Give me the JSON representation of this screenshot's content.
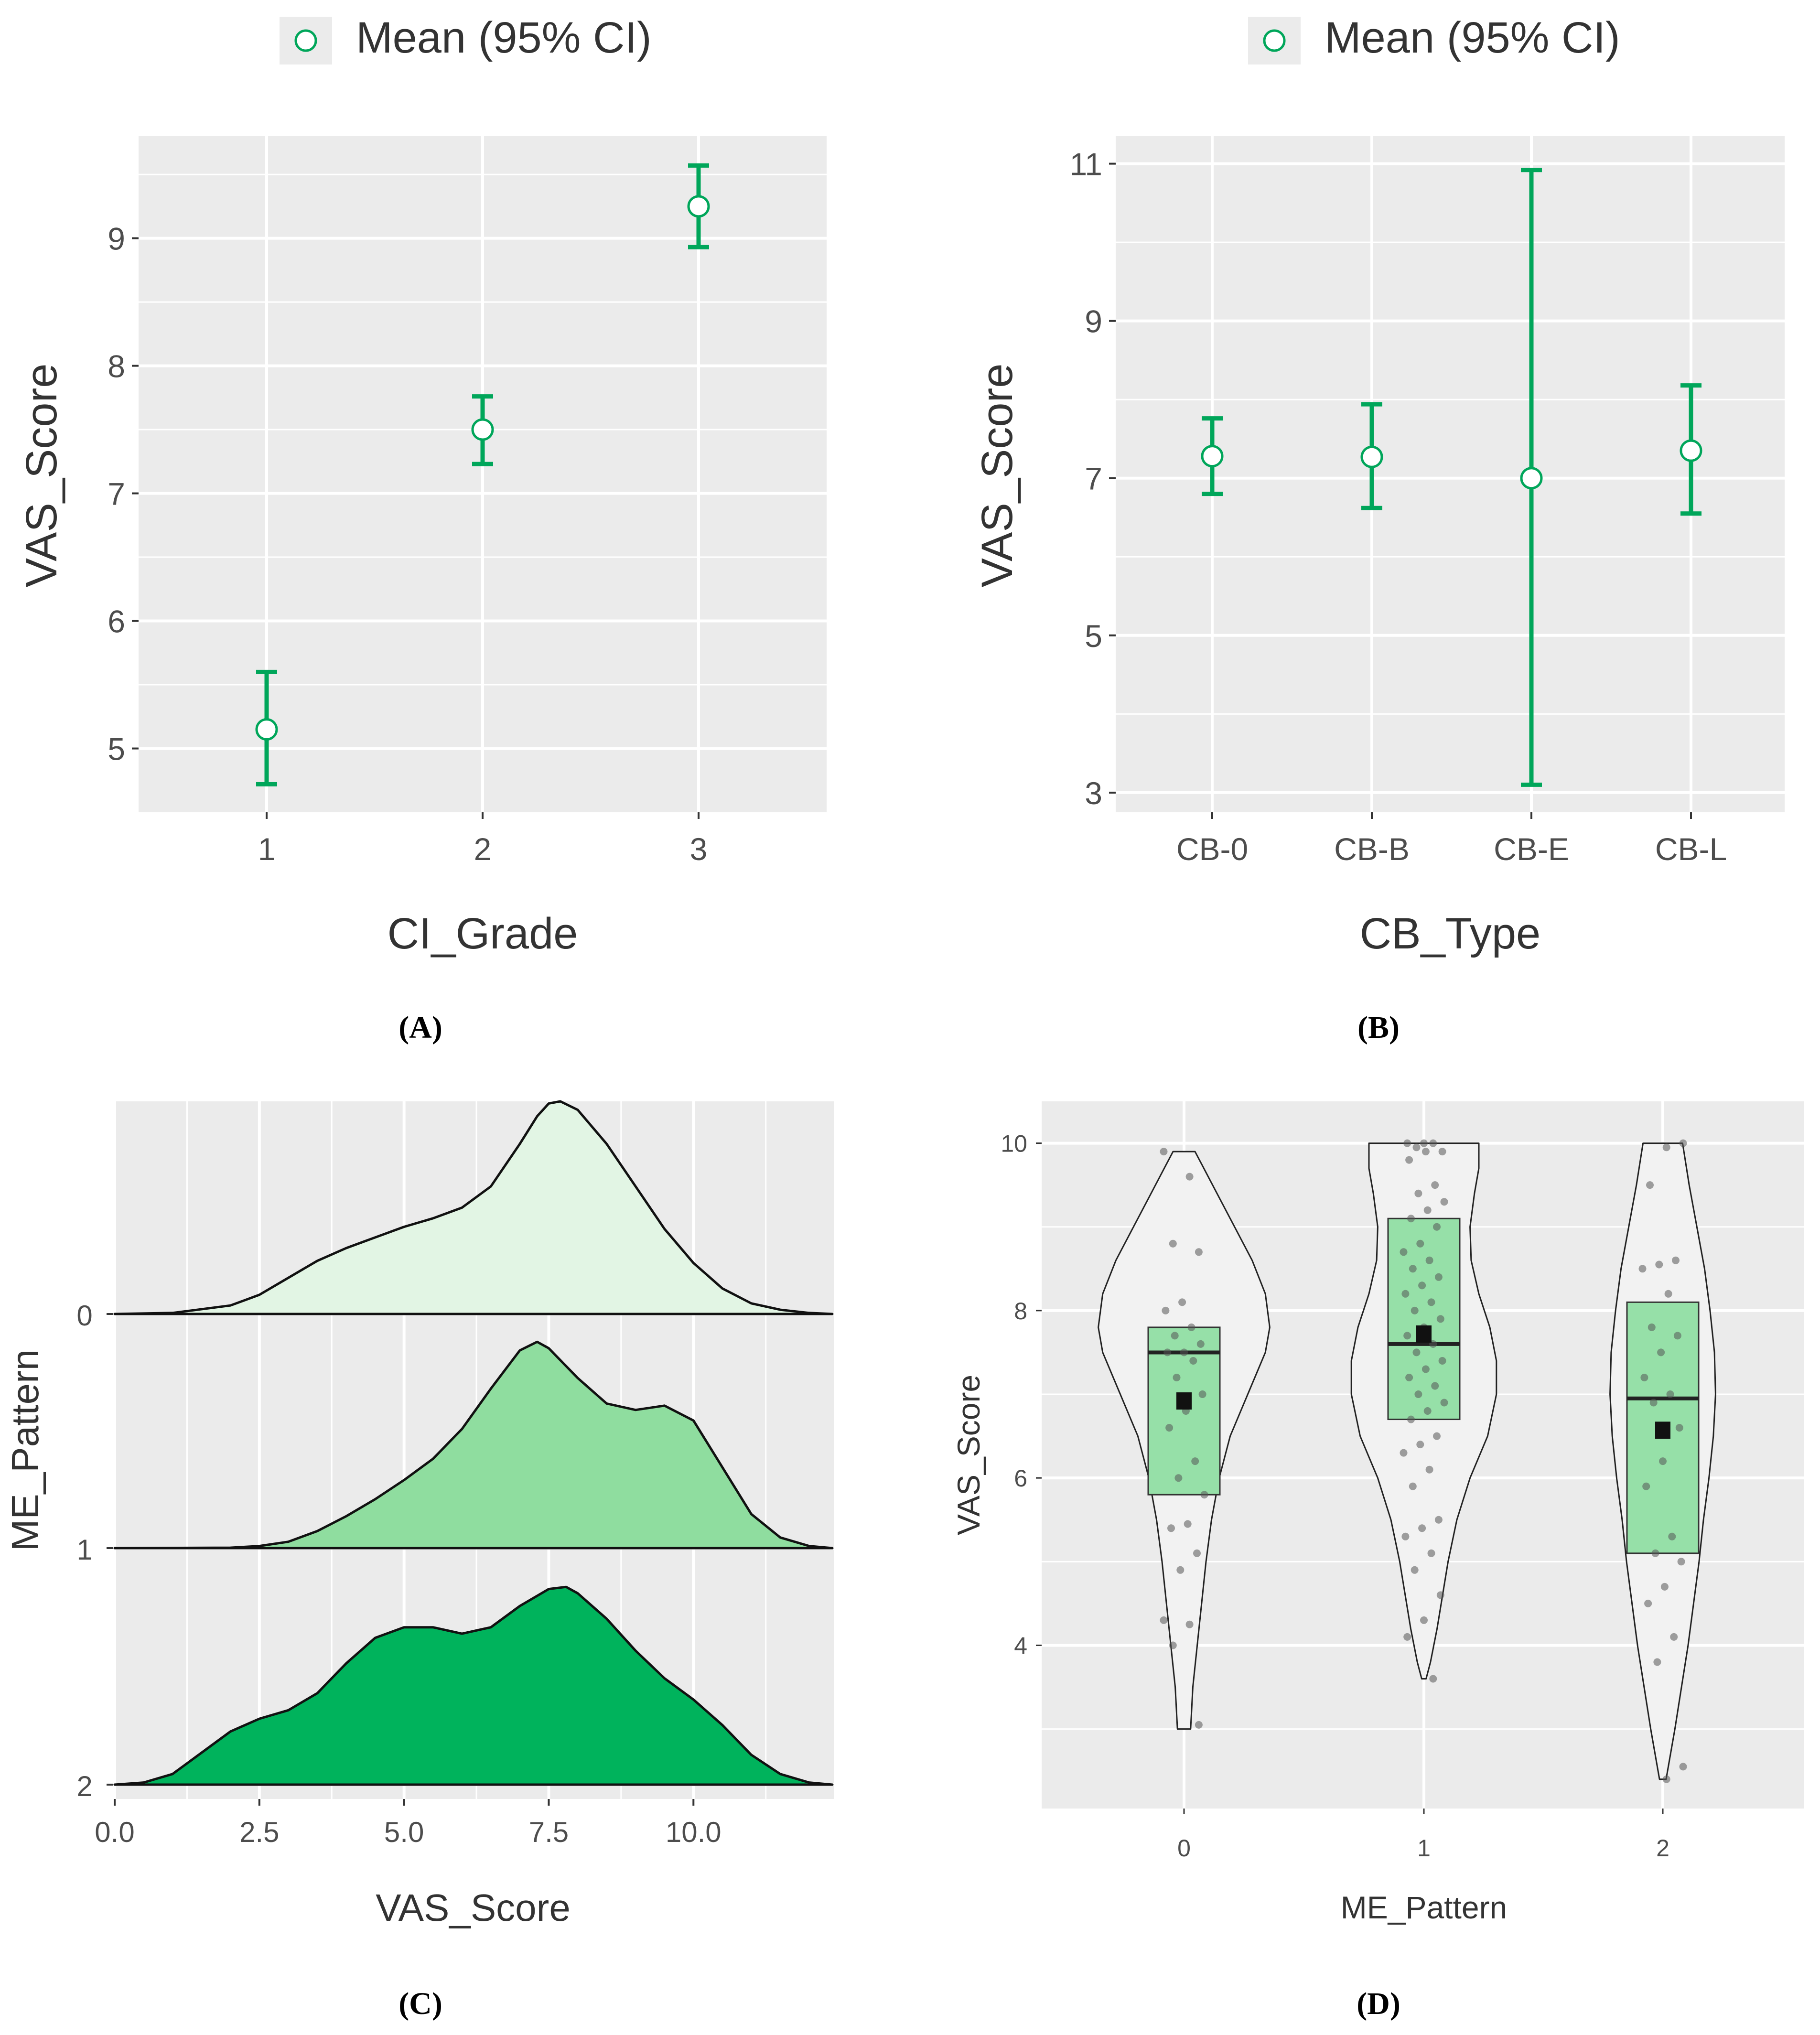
{
  "figure": {
    "panel_labels": [
      "(A)",
      "(B)",
      "(C)",
      "(D)"
    ]
  },
  "colors": {
    "panel_bg": "#ebebeb",
    "grid": "#ffffff",
    "accent": "#00a65a",
    "ridge_0": "#e2f5e4",
    "ridge_1": "#8fdd9f",
    "ridge_2": "#00b35c",
    "box_fill": "#96e0a8",
    "violin_fill": "#f2f2f2",
    "text": "#333333",
    "axis_text": "#4d4d4d"
  },
  "chart_data": [
    {
      "id": "A",
      "type": "scatter",
      "subtype": "mean-with-error-bars",
      "legend": {
        "label": "Mean (95% CI)",
        "placement": "top",
        "marker": "open-circle"
      },
      "xlabel": "CI_Grade",
      "ylabel": "VAS_Score",
      "categories": [
        "1",
        "2",
        "3"
      ],
      "series": [
        {
          "name": "Mean (95% CI)",
          "mean": [
            5.15,
            7.5,
            9.25
          ],
          "ci_low": [
            4.72,
            7.23,
            8.93
          ],
          "ci_high": [
            5.6,
            7.76,
            9.57
          ]
        }
      ],
      "ylim": [
        4.5,
        9.8
      ],
      "yticks": [
        "5",
        "6",
        "7",
        "8",
        "9"
      ],
      "grid": true
    },
    {
      "id": "B",
      "type": "scatter",
      "subtype": "mean-with-error-bars",
      "legend": {
        "label": "Mean (95% CI)",
        "placement": "top",
        "marker": "open-circle"
      },
      "xlabel": "CB_Type",
      "ylabel": "VAS_Score",
      "categories": [
        "CB-0",
        "CB-B",
        "CB-E",
        "CB-L"
      ],
      "series": [
        {
          "name": "Mean (95% CI)",
          "mean": [
            7.28,
            7.27,
            7.0,
            7.35
          ],
          "ci_low": [
            6.8,
            6.62,
            3.1,
            6.55
          ],
          "ci_high": [
            7.76,
            7.94,
            10.92,
            8.18
          ]
        }
      ],
      "ylim": [
        2.75,
        11.35
      ],
      "yticks": [
        "3",
        "5",
        "7",
        "9",
        "11"
      ],
      "grid": true
    },
    {
      "id": "C",
      "type": "area",
      "subtype": "ridgeline-density",
      "xlabel": "VAS_Score",
      "ylabel": "ME_Pattern",
      "xlim": [
        0,
        12.4
      ],
      "xticks": [
        "0.0",
        "2.5",
        "5.0",
        "7.5",
        "10.0"
      ],
      "series": [
        {
          "name": "0",
          "x": [
            0,
            1,
            2,
            2.5,
            3,
            3.5,
            4,
            4.5,
            5,
            5.5,
            6,
            6.5,
            7,
            7.3,
            7.5,
            7.7,
            8,
            8.5,
            9,
            9.5,
            10,
            10.5,
            11,
            11.5,
            12,
            12.4
          ],
          "density": [
            0,
            0.005,
            0.04,
            0.09,
            0.17,
            0.25,
            0.31,
            0.36,
            0.41,
            0.45,
            0.5,
            0.6,
            0.8,
            0.93,
            0.99,
            1.0,
            0.96,
            0.8,
            0.6,
            0.4,
            0.24,
            0.12,
            0.05,
            0.02,
            0.005,
            0
          ]
        },
        {
          "name": "1",
          "x": [
            0,
            2,
            2.5,
            3,
            3.5,
            4,
            4.5,
            5,
            5.5,
            6,
            6.5,
            7,
            7.3,
            7.5,
            8,
            8.5,
            9,
            9.5,
            10,
            10.5,
            11,
            11.5,
            12,
            12.4
          ],
          "density": [
            0,
            0.002,
            0.01,
            0.03,
            0.08,
            0.15,
            0.23,
            0.32,
            0.42,
            0.56,
            0.75,
            0.93,
            0.97,
            0.94,
            0.8,
            0.68,
            0.65,
            0.67,
            0.6,
            0.38,
            0.16,
            0.05,
            0.01,
            0
          ]
        },
        {
          "name": "2",
          "x": [
            0,
            0.5,
            1,
            1.5,
            2,
            2.5,
            3,
            3.5,
            4,
            4.5,
            5,
            5.5,
            6,
            6.5,
            7,
            7.5,
            7.8,
            8,
            8.5,
            9,
            9.5,
            10,
            10.5,
            11,
            11.5,
            12,
            12.4
          ],
          "density": [
            0,
            0.01,
            0.05,
            0.15,
            0.25,
            0.31,
            0.35,
            0.43,
            0.57,
            0.69,
            0.74,
            0.74,
            0.71,
            0.74,
            0.84,
            0.92,
            0.93,
            0.9,
            0.78,
            0.63,
            0.5,
            0.4,
            0.28,
            0.14,
            0.05,
            0.01,
            0
          ]
        }
      ],
      "grid": true
    },
    {
      "id": "D",
      "type": "box",
      "subtype": "violin-box-jitter",
      "xlabel": "ME_Pattern",
      "ylabel": "VAS_Score",
      "categories": [
        "0",
        "1",
        "2"
      ],
      "ylim": [
        2.05,
        10.5
      ],
      "yticks": [
        "4",
        "6",
        "8",
        "10"
      ],
      "boxes": [
        {
          "q1": 5.8,
          "median": 7.5,
          "q3": 7.8,
          "mean": 6.92
        },
        {
          "q1": 6.7,
          "median": 7.6,
          "q3": 9.1,
          "mean": 7.72
        },
        {
          "q1": 5.1,
          "median": 6.95,
          "q3": 8.1,
          "mean": 6.57
        }
      ],
      "violins": [
        {
          "y": [
            3.0,
            3.5,
            4.0,
            4.5,
            5.0,
            5.5,
            6.0,
            6.5,
            7.0,
            7.5,
            7.8,
            8.2,
            8.6,
            9.0,
            9.4,
            9.7,
            9.9
          ],
          "width": [
            0.06,
            0.08,
            0.12,
            0.16,
            0.2,
            0.25,
            0.32,
            0.42,
            0.58,
            0.74,
            0.78,
            0.74,
            0.62,
            0.46,
            0.3,
            0.18,
            0.1
          ]
        },
        {
          "y": [
            3.6,
            3.8,
            4.2,
            4.6,
            5.0,
            5.5,
            6.0,
            6.5,
            7.0,
            7.4,
            7.8,
            8.2,
            8.6,
            9.0,
            9.4,
            9.7,
            10.0
          ],
          "width": [
            0.02,
            0.06,
            0.12,
            0.17,
            0.22,
            0.3,
            0.42,
            0.58,
            0.66,
            0.66,
            0.6,
            0.5,
            0.43,
            0.42,
            0.46,
            0.5,
            0.5
          ]
        },
        {
          "y": [
            2.4,
            3.0,
            3.5,
            4.0,
            4.5,
            5.0,
            5.5,
            6.0,
            6.5,
            7.0,
            7.5,
            8.0,
            8.5,
            9.0,
            9.5,
            10.0
          ],
          "width": [
            0.03,
            0.11,
            0.17,
            0.23,
            0.28,
            0.33,
            0.37,
            0.42,
            0.46,
            0.48,
            0.47,
            0.43,
            0.38,
            0.31,
            0.24,
            0.18
          ]
        }
      ],
      "points": [
        [
          9.9,
          9.6,
          8.8,
          8.7,
          8.1,
          8.0,
          7.8,
          7.7,
          7.6,
          7.5,
          7.5,
          7.4,
          7.2,
          7.0,
          6.8,
          6.6,
          6.2,
          6.0,
          5.8,
          5.45,
          5.4,
          5.1,
          4.9,
          4.3,
          4.25,
          4.0,
          3.05
        ],
        [
          10.0,
          10.0,
          10.0,
          9.95,
          9.9,
          9.9,
          9.8,
          9.5,
          9.4,
          9.3,
          9.2,
          9.1,
          9.0,
          8.8,
          8.7,
          8.6,
          8.5,
          8.4,
          8.3,
          8.2,
          8.1,
          8.0,
          7.9,
          7.8,
          7.7,
          7.6,
          7.5,
          7.4,
          7.3,
          7.2,
          7.1,
          7.0,
          6.9,
          6.8,
          6.7,
          6.5,
          6.4,
          6.3,
          6.1,
          5.9,
          5.5,
          5.4,
          5.3,
          5.1,
          4.9,
          4.6,
          4.3,
          4.1,
          3.6
        ],
        [
          10.0,
          9.95,
          9.5,
          8.6,
          8.55,
          8.5,
          8.2,
          7.8,
          7.7,
          7.5,
          7.2,
          7.0,
          6.9,
          6.6,
          6.2,
          5.9,
          5.3,
          5.1,
          5.0,
          4.7,
          4.5,
          4.1,
          3.8,
          2.55,
          2.4
        ]
      ],
      "grid": true
    }
  ]
}
